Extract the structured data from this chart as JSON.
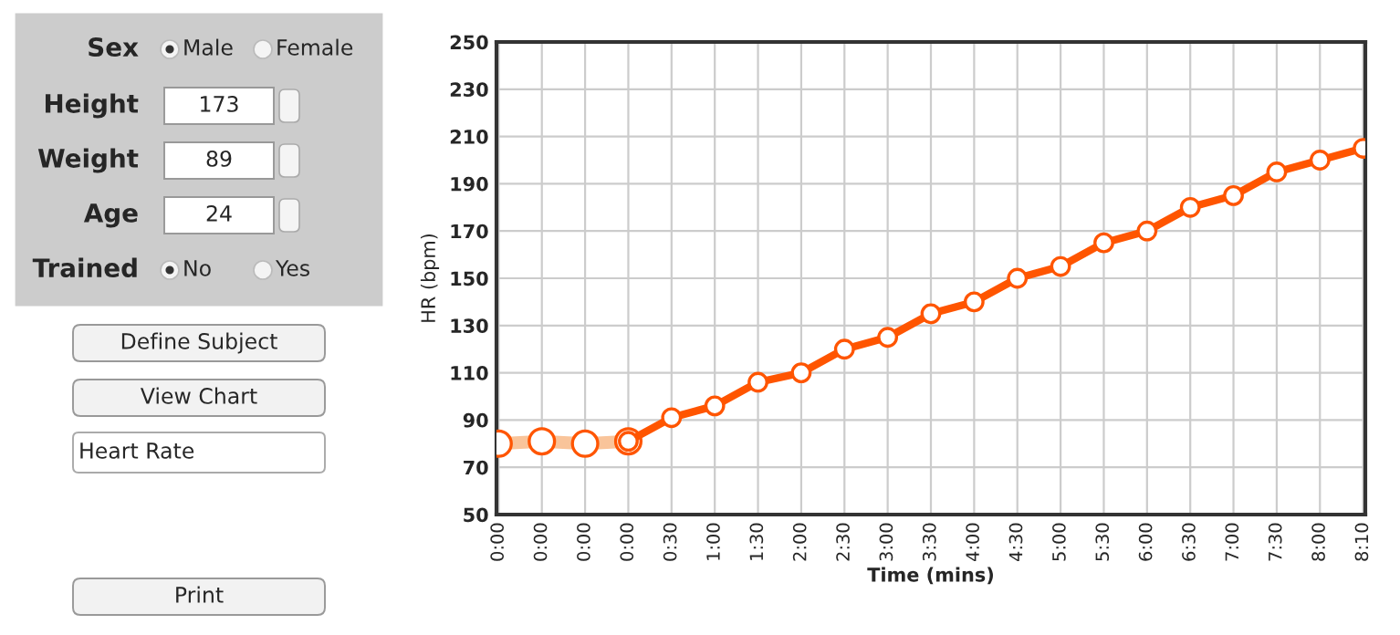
{
  "chart_data": [
    {
      "type": "other",
      "annotations": [
        "Sex",
        "Male",
        "Female",
        "Height",
        "173",
        "Weight",
        "89",
        "Age",
        "24",
        "Trained",
        "No",
        "Yes",
        "Define Subject",
        "View Chart",
        "Heart Rate",
        "Print"
      ]
    },
    {
      "type": "line",
      "xlabel": "Time (mins)",
      "ylabel": "HR (bpm)",
      "categories": [
        "0:00",
        "0:00",
        "0:00",
        "0:00",
        "0:30",
        "1:00",
        "1:30",
        "2:00",
        "2:30",
        "3:00",
        "3:30",
        "4:00",
        "4:30",
        "5:00",
        "5:30",
        "6:00",
        "6:30",
        "7:00",
        "7:30",
        "8:00",
        "8:10"
      ],
      "series": [
        {
          "color": "#f9c49a",
          "values": [
            80,
            81,
            80,
            81,
            null,
            null,
            null,
            null,
            null,
            null,
            null,
            null,
            null,
            null,
            null,
            null,
            null,
            null,
            null,
            null,
            null
          ]
        },
        {
          "color": "#ff5500",
          "values": [
            null,
            null,
            null,
            81,
            91,
            96,
            106,
            110,
            120,
            125,
            135,
            140,
            150,
            155,
            165,
            170,
            180,
            185,
            195,
            200,
            205
          ]
        }
      ],
      "ylim": [
        50,
        250
      ],
      "yticks": [
        50,
        70,
        90,
        110,
        130,
        150,
        170,
        190,
        210,
        230,
        250
      ],
      "grid": true,
      "marker": "circle",
      "line_style": "solid"
    }
  ]
}
